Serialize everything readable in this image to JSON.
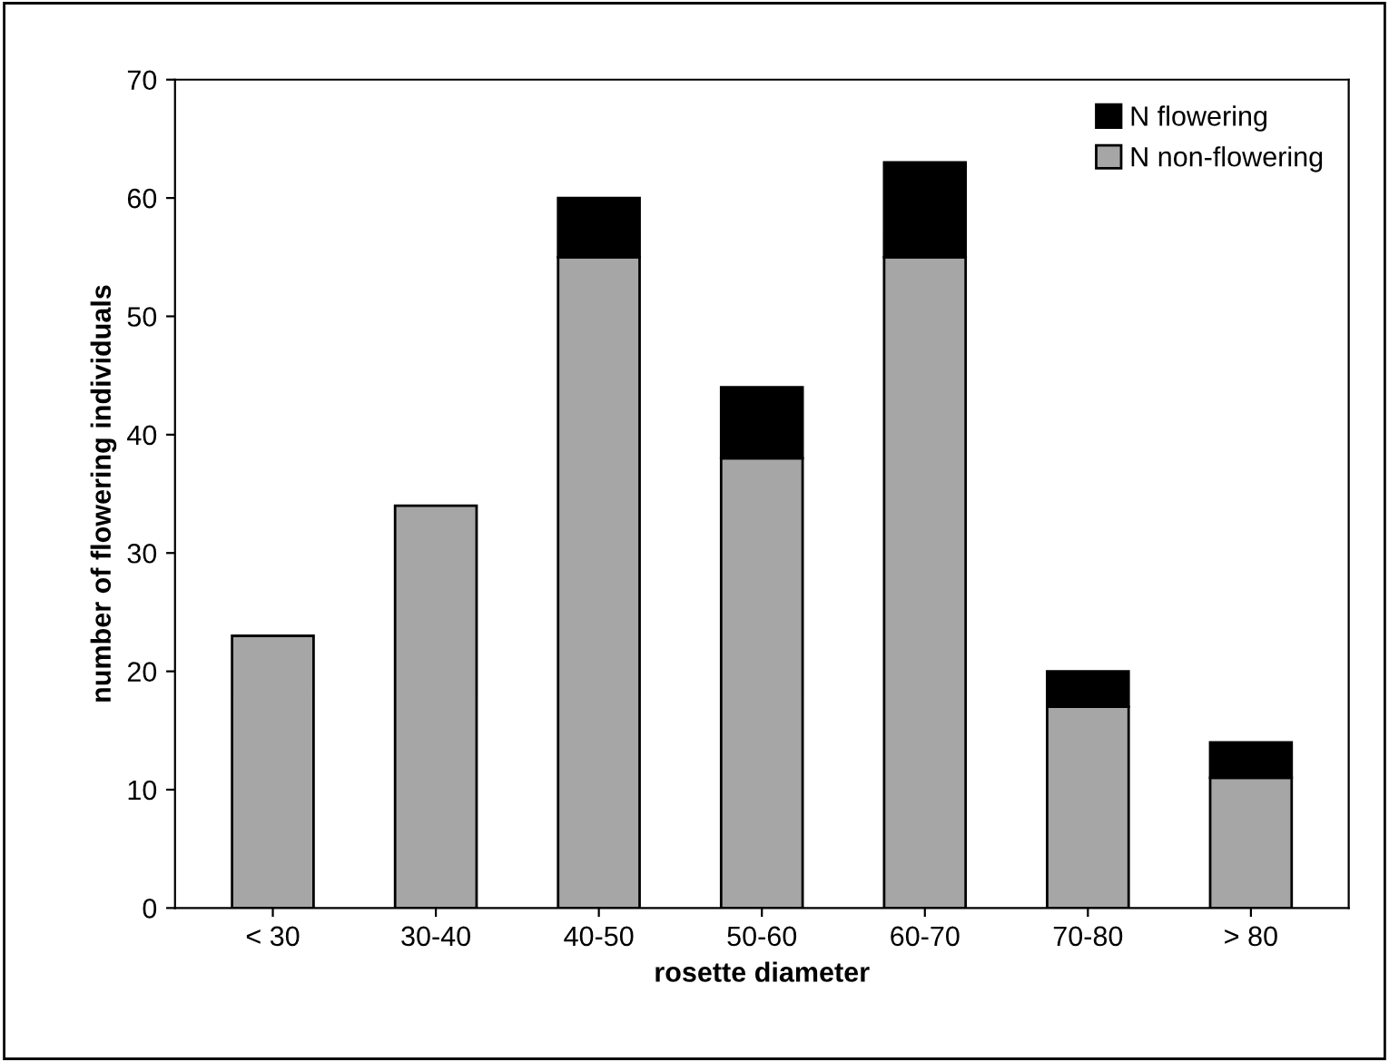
{
  "chart_data": {
    "type": "bar",
    "stacked": true,
    "xlabel": "rosette diameter",
    "ylabel": "number of flowering individuals",
    "categories": [
      "< 30",
      "30-40",
      "40-50",
      "50-60",
      "60-70",
      "70-80",
      "> 80"
    ],
    "series": [
      {
        "name": "N non-flowering",
        "color": "#a6a6a6",
        "values": [
          23,
          34,
          55,
          38,
          55,
          17,
          11
        ]
      },
      {
        "name": "N flowering",
        "color": "#000000",
        "values": [
          0,
          0,
          5,
          6,
          8,
          3,
          3
        ]
      }
    ],
    "ylim": [
      0,
      70
    ],
    "yticks": [
      0,
      10,
      20,
      30,
      40,
      50,
      60,
      70
    ],
    "grid": false,
    "legend": "top right"
  }
}
